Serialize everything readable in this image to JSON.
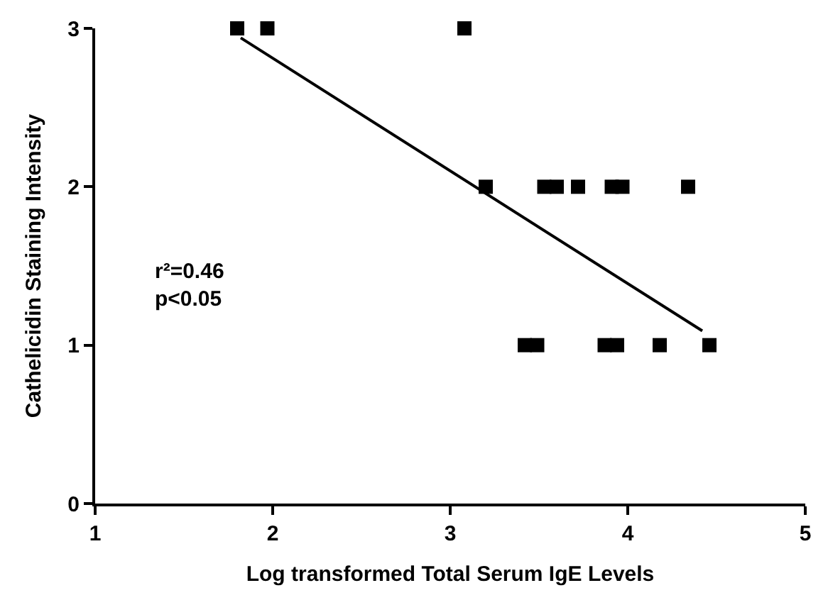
{
  "chart_data": {
    "type": "scatter",
    "xlabel": "Log transformed Total Serum IgE Levels",
    "ylabel": "Cathelicidin Staining Intensity",
    "annotations": [
      "r²=0.46\np<0.05"
    ],
    "series": [
      {
        "color": "#000000",
        "marker": "square",
        "x": [
          1.8,
          1.97,
          3.08,
          3.2,
          3.53,
          3.6,
          3.72,
          3.91,
          3.97,
          4.34,
          3.42,
          3.49,
          3.87,
          3.94,
          4.18,
          4.46
        ],
        "values": [
          3,
          3,
          3,
          2,
          2,
          2,
          2,
          2,
          2,
          2,
          1,
          1,
          1,
          1,
          1,
          1
        ]
      },
      {
        "type": "line",
        "color": "#000000",
        "x": [
          1.82,
          4.42
        ],
        "values": [
          2.94,
          1.09
        ]
      }
    ],
    "xlim": [
      1,
      5
    ],
    "xticks": [
      1,
      2,
      3,
      4,
      5
    ],
    "ylim": [
      0,
      3
    ],
    "yticks": [
      0,
      1,
      2,
      3
    ]
  }
}
